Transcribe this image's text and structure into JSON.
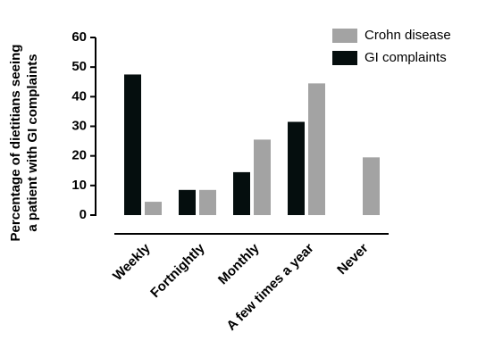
{
  "chart_data": {
    "type": "bar",
    "y_label": [
      "Percentage of dietitians seeing",
      "a patient with GI complaints"
    ],
    "categories": [
      "Weekly",
      "Fortnightly",
      "Monthly",
      "A few times a year",
      "Never"
    ],
    "series": [
      {
        "name": "GI complaints",
        "color": "#050e0e",
        "values": [
          47.5,
          8.5,
          14.5,
          31.5,
          0
        ]
      },
      {
        "name": "Crohn disease",
        "color": "#a3a3a3",
        "values": [
          4.5,
          8.5,
          25.5,
          44.5,
          19.5
        ]
      }
    ],
    "ylim": [
      0,
      60
    ],
    "yticks": [
      0,
      10,
      20,
      30,
      40,
      50,
      60
    ],
    "legend": "top-right"
  }
}
